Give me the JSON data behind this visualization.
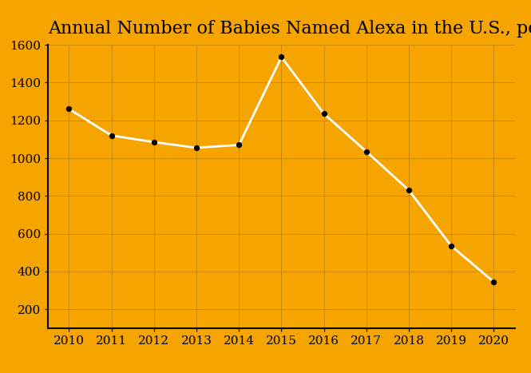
{
  "title": "Annual Number of Babies Named Alexa in the U.S., per Million Births",
  "years": [
    2010,
    2011,
    2012,
    2013,
    2014,
    2015,
    2016,
    2017,
    2018,
    2019,
    2020
  ],
  "values": [
    1260,
    1120,
    1085,
    1055,
    1070,
    1535,
    1235,
    1035,
    830,
    535,
    345
  ],
  "background_color": "#F5A400",
  "line_color": "white",
  "marker_color": "black",
  "grid_color": "#CC8800",
  "text_color": "black",
  "title_fontsize": 16,
  "tick_fontsize": 11,
  "ylim": [
    100,
    1600
  ],
  "yticks": [
    200,
    400,
    600,
    800,
    1000,
    1200,
    1400,
    1600
  ],
  "xlim": [
    2009.5,
    2020.5
  ]
}
